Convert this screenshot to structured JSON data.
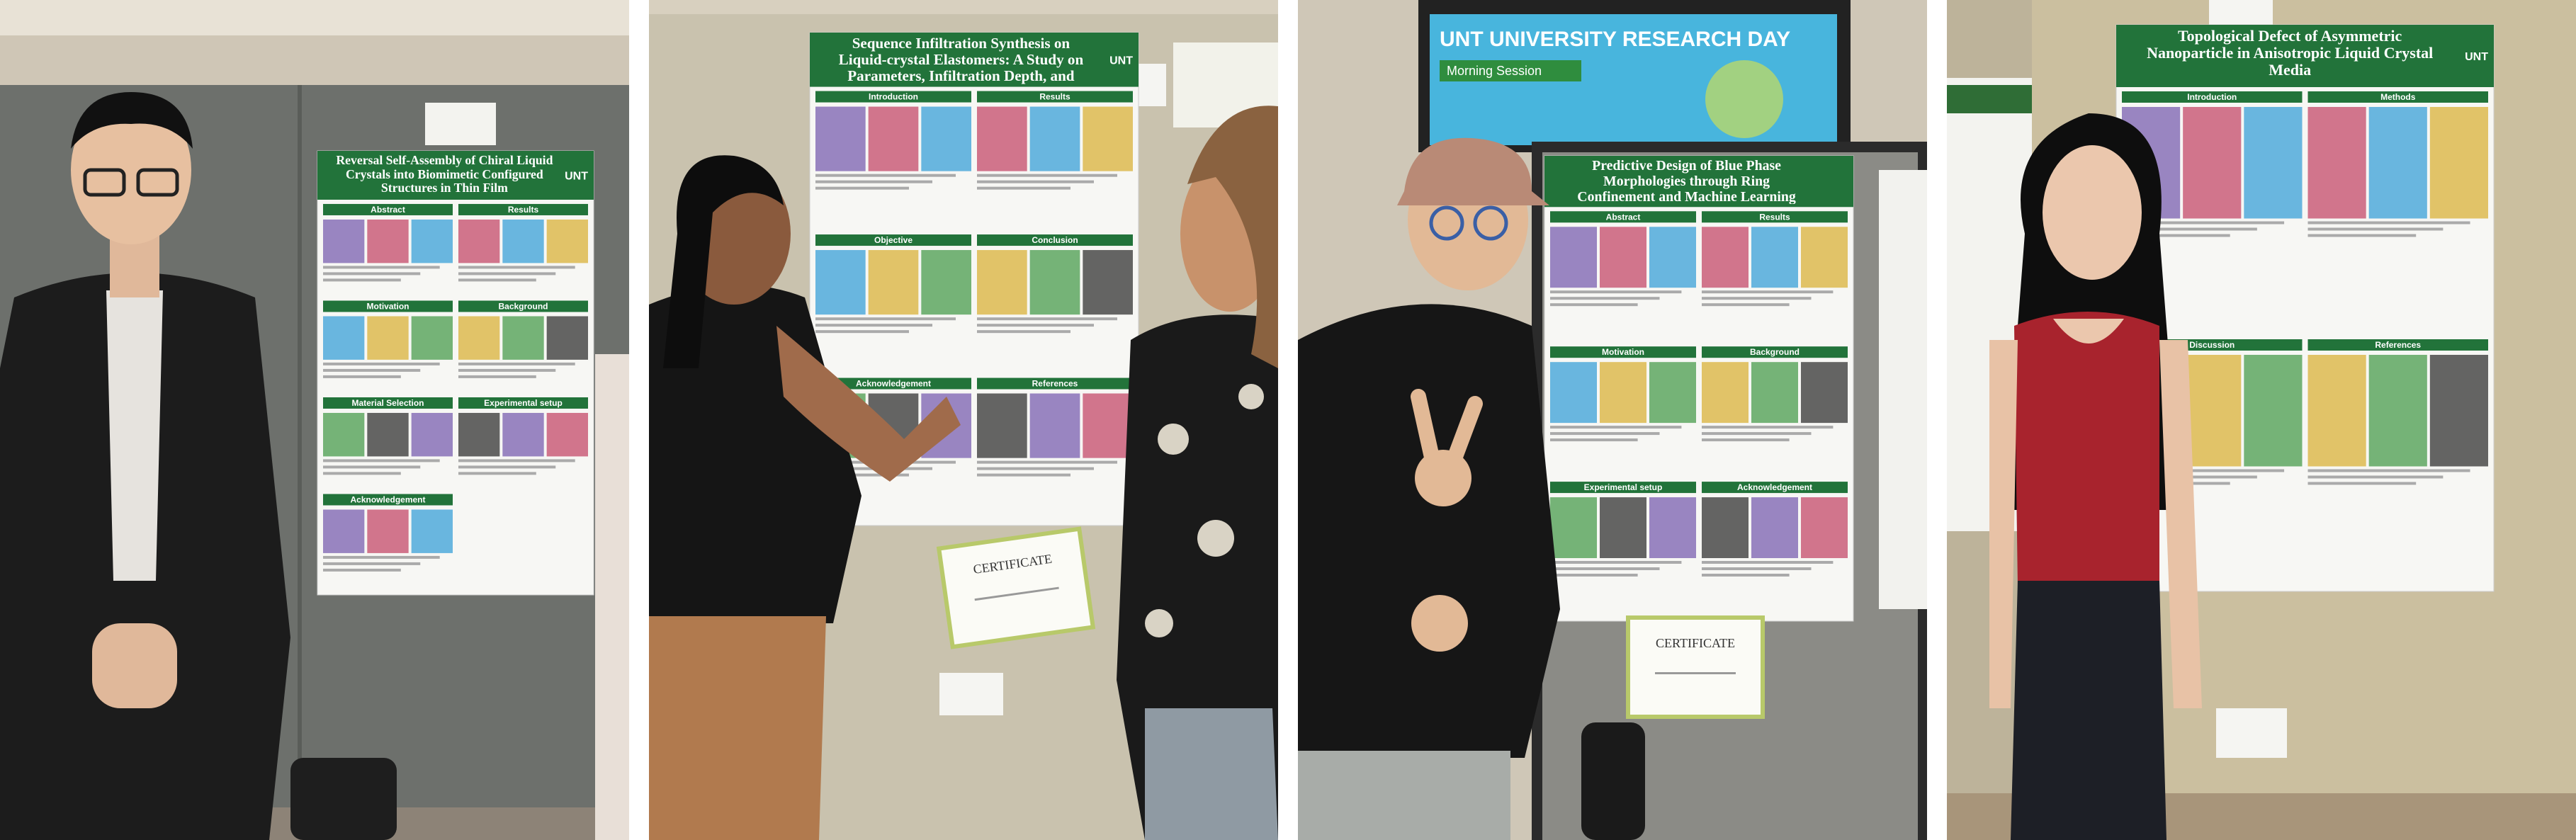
{
  "photos": [
    {
      "poster": {
        "title": "Reversal Self-Assembly of Chiral Liquid Crystals into Biomimetic Configured Structures in Thin Film",
        "logo": "UNT",
        "sections": [
          "Abstract",
          "Results",
          "Motivation",
          "Background",
          "Material Selection",
          "Experimental setup",
          "Acknowledgement"
        ]
      }
    },
    {
      "poster": {
        "title": "Sequence Infiltration Synthesis on Liquid-crystal Elastomers: A Study on Parameters, Infiltration Depth, and Enhanced Material Properties",
        "logo": "UNT",
        "sections": [
          "Introduction",
          "Results",
          "Objective",
          "Conclusion",
          "Acknowledgement",
          "References"
        ]
      },
      "certificate": "CERTIFICATE"
    },
    {
      "screen": {
        "title": "UNT UNIVERSITY RESEARCH DAY",
        "session": "Morning Session"
      },
      "poster": {
        "title": "Predictive Design of Blue Phase Morphologies through Ring Confinement and Machine Learning",
        "sections": [
          "Abstract",
          "Results",
          "Motivation",
          "Background",
          "Experimental setup",
          "Acknowledgement"
        ]
      },
      "certificate": "CERTIFICATE"
    },
    {
      "poster": {
        "title": "Topological Defect of Asymmetric Nanoparticle in Anisotropic Liquid Crystal Media",
        "logo": "UNT",
        "sections": [
          "Introduction",
          "Methods",
          "Discussion",
          "References"
        ]
      }
    }
  ]
}
